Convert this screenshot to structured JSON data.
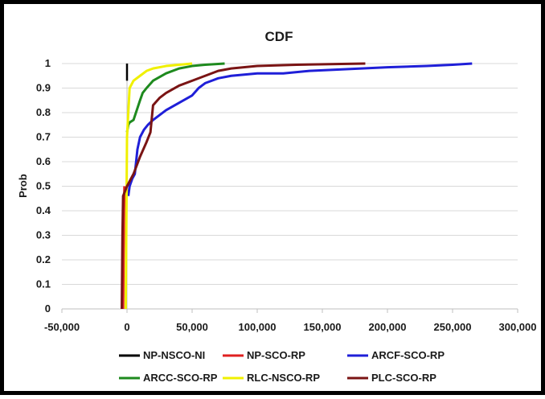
{
  "chart_data": {
    "type": "line",
    "title": "CDF",
    "xlabel": "",
    "ylabel": "Prob",
    "xlim": [
      -50000,
      300000
    ],
    "ylim": [
      0,
      1
    ],
    "xticks": [
      -50000,
      0,
      50000,
      100000,
      150000,
      200000,
      250000,
      300000
    ],
    "xtick_labels": [
      "-50,000",
      "0",
      "50,000",
      "100,000",
      "150,000",
      "200,000",
      "250,000",
      "300,000"
    ],
    "yticks": [
      0,
      0.1,
      0.2,
      0.3,
      0.4,
      0.5,
      0.6,
      0.7,
      0.8,
      0.9,
      1
    ],
    "ytick_labels": [
      "0",
      "0.1",
      "0.2",
      "0.3",
      "0.4",
      "0.5",
      "0.6",
      "0.7",
      "0.8",
      "0.9",
      "1"
    ],
    "grid": "horizontal",
    "legend_position": "bottom",
    "series": [
      {
        "name": "NP-NSCO-NI",
        "color": "#000000",
        "x": [
          0,
          0,
          0
        ],
        "y": [
          0.93,
          0.97,
          1.0
        ]
      },
      {
        "name": "NP-SCO-RP",
        "color": "#e02020",
        "x": [
          -3000,
          -2500,
          -2000
        ],
        "y": [
          0.0,
          0.3,
          0.5
        ]
      },
      {
        "name": "ARCF-SCO-RP",
        "color": "#1f1fd8",
        "x": [
          1000,
          2000,
          4000,
          6000,
          7000,
          8000,
          10000,
          13000,
          16000,
          20000,
          25000,
          30000,
          40000,
          50000,
          55000,
          60000,
          65000,
          70000,
          80000,
          100000,
          120000,
          140000,
          160000,
          180000,
          200000,
          230000,
          250000,
          265000
        ],
        "y": [
          0.46,
          0.5,
          0.53,
          0.55,
          0.6,
          0.65,
          0.7,
          0.73,
          0.75,
          0.77,
          0.79,
          0.81,
          0.84,
          0.87,
          0.9,
          0.92,
          0.93,
          0.94,
          0.95,
          0.96,
          0.96,
          0.97,
          0.975,
          0.98,
          0.985,
          0.99,
          0.995,
          1.0
        ]
      },
      {
        "name": "ARCC-SCO-RP",
        "color": "#1e8a1e",
        "x": [
          0,
          1000,
          2000,
          5000,
          10000,
          12000,
          15000,
          20000,
          30000,
          40000,
          50000,
          60000,
          75000
        ],
        "y": [
          0.72,
          0.75,
          0.76,
          0.77,
          0.85,
          0.88,
          0.9,
          0.93,
          0.96,
          0.98,
          0.99,
          0.995,
          1.0
        ]
      },
      {
        "name": "RLC-NSCO-RP",
        "color": "#f0f000",
        "x": [
          -1000,
          0,
          1000,
          2000,
          5000,
          10000,
          15000,
          20000,
          30000,
          40000,
          50000
        ],
        "y": [
          0.0,
          0.7,
          0.8,
          0.9,
          0.93,
          0.95,
          0.97,
          0.98,
          0.99,
          0.995,
          1.0
        ]
      },
      {
        "name": "PLC-SCO-RP",
        "color": "#7a1414",
        "x": [
          -4000,
          -3500,
          -3000,
          0,
          5000,
          10000,
          15000,
          18000,
          20000,
          25000,
          30000,
          40000,
          50000,
          60000,
          70000,
          80000,
          100000,
          130000,
          160000,
          183000
        ],
        "y": [
          0.0,
          0.3,
          0.46,
          0.5,
          0.55,
          0.62,
          0.68,
          0.72,
          0.83,
          0.86,
          0.88,
          0.91,
          0.93,
          0.95,
          0.97,
          0.98,
          0.99,
          0.995,
          0.998,
          1.0
        ]
      }
    ]
  }
}
